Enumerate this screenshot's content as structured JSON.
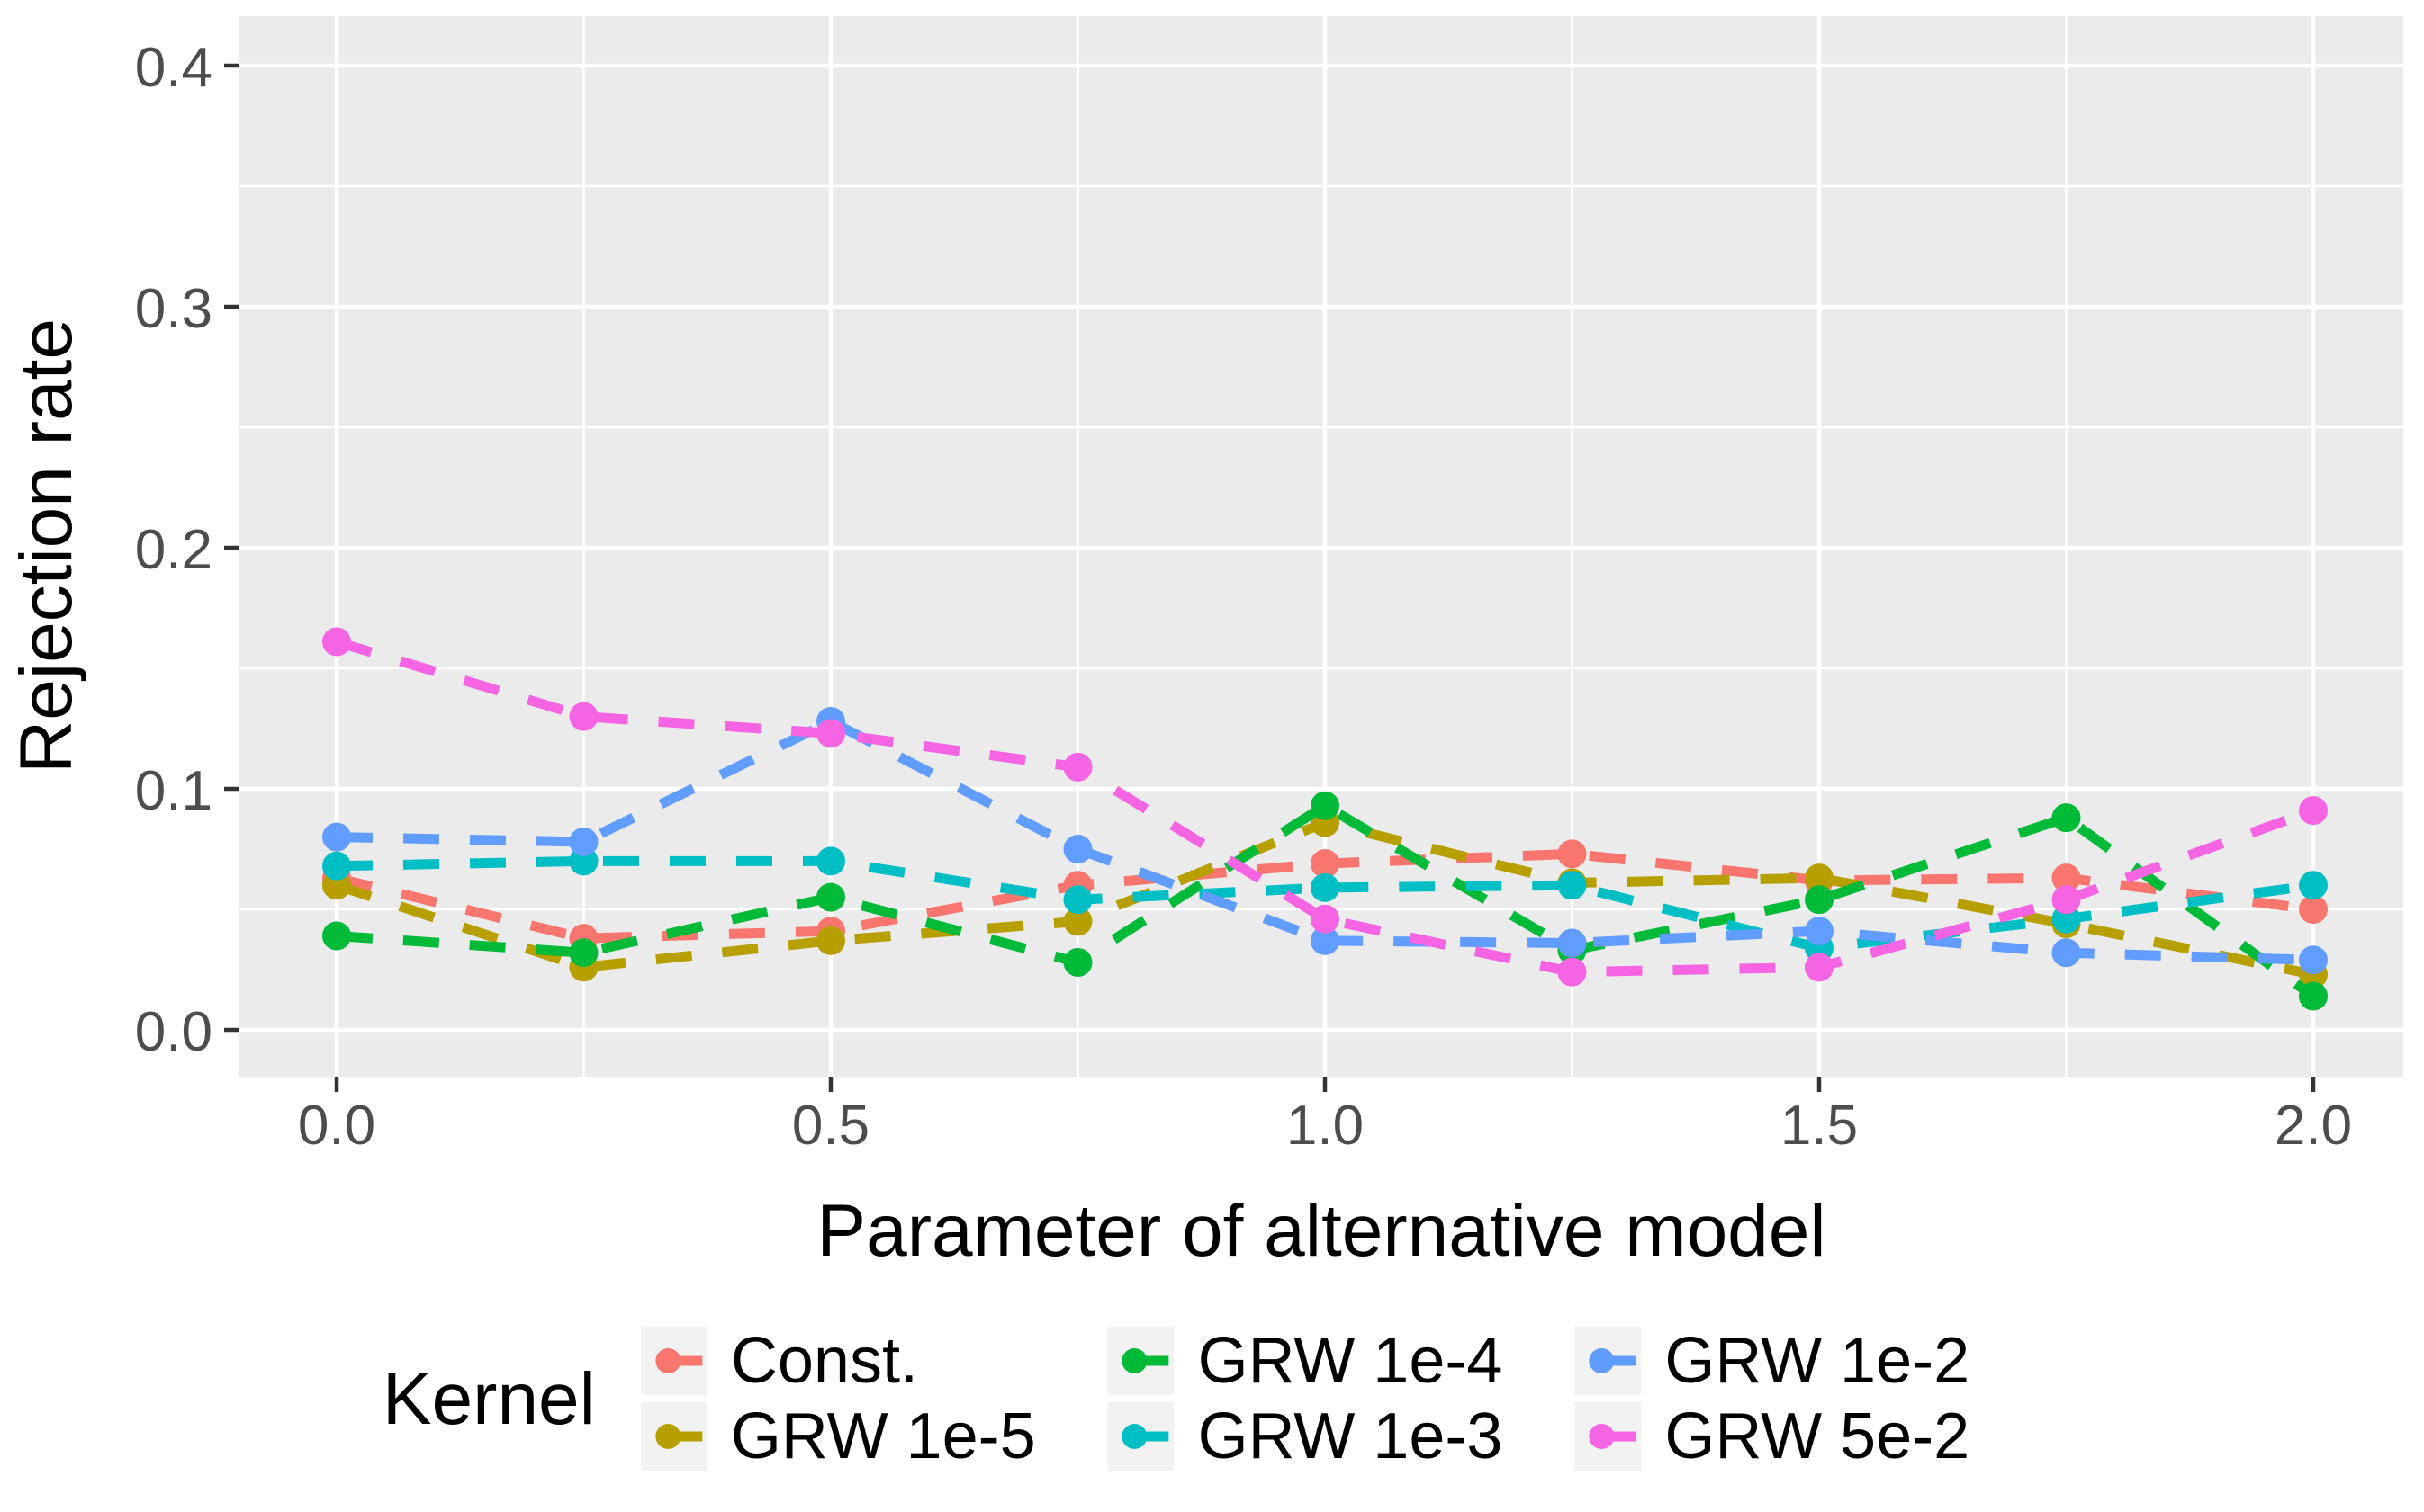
{
  "chart_data": {
    "type": "line",
    "title": "",
    "xlabel": "Parameter of alternative model",
    "ylabel": "Rejection rate",
    "line_style": "dashed",
    "marker": "circle",
    "grid": "major and minor white gridlines on grey panel",
    "panel_bg": "#EBEBEB",
    "grid_color": "#FFFFFF",
    "tick_label_color": "#4D4D4D",
    "tick_mark_color": "#333333",
    "axis_title_color": "#000000",
    "xlim": [
      -0.1,
      2.1
    ],
    "ylim": [
      0,
      0.42
    ],
    "x_ticks": {
      "values": [
        0.0,
        0.5,
        1.0,
        1.5,
        2.0
      ],
      "labels": [
        "0.0",
        "0.5",
        "1.0",
        "1.5",
        "2.0"
      ]
    },
    "y_ticks": {
      "values": [
        0.0,
        0.1,
        0.2,
        0.3,
        0.4
      ],
      "labels": [
        "0.0",
        "0.1",
        "0.2",
        "0.3",
        "0.4"
      ]
    },
    "x": [
      0.0,
      0.25,
      0.5,
      0.75,
      1.0,
      1.25,
      1.5,
      1.75,
      2.0
    ],
    "legend": {
      "title": "Kernel",
      "position": "bottom"
    },
    "series": [
      {
        "name": "Const.",
        "color": "#F8766D",
        "values": [
          0.063,
          0.038,
          0.041,
          0.06,
          0.069,
          0.073,
          0.062,
          0.063,
          0.05
        ]
      },
      {
        "name": "GRW 1e-5",
        "color": "#B79F00",
        "values": [
          0.06,
          0.026,
          0.037,
          0.045,
          0.086,
          0.061,
          0.063,
          0.044,
          0.023
        ]
      },
      {
        "name": "GRW 1e-4",
        "color": "#00BA38",
        "values": [
          0.039,
          0.032,
          0.055,
          0.028,
          0.093,
          0.033,
          0.054,
          0.088,
          0.014
        ]
      },
      {
        "name": "GRW 1e-3",
        "color": "#00BFC4",
        "values": [
          0.068,
          0.07,
          0.07,
          0.054,
          0.059,
          0.06,
          0.034,
          0.046,
          0.06
        ]
      },
      {
        "name": "GRW 1e-2",
        "color": "#619CFF",
        "values": [
          0.08,
          0.078,
          0.128,
          0.075,
          0.037,
          0.036,
          0.041,
          0.032,
          0.029
        ]
      },
      {
        "name": "GRW 5e-2",
        "color": "#F564E3",
        "values": [
          0.161,
          0.13,
          0.123,
          0.109,
          0.046,
          0.024,
          0.026,
          0.054,
          0.091
        ]
      }
    ]
  }
}
